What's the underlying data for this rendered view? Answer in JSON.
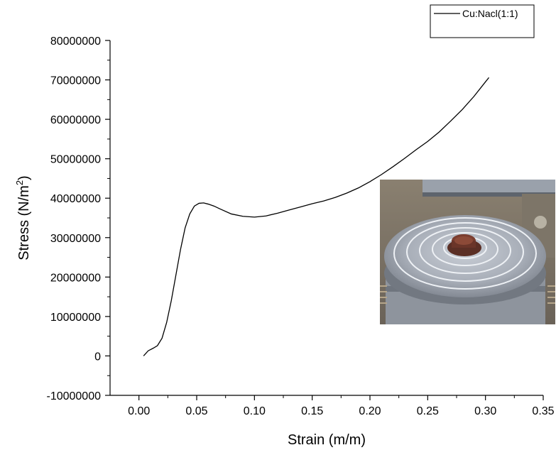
{
  "chart_data": {
    "type": "line",
    "xlabel": "Strain (m/m)",
    "ylabel_main": "Stress (N/m",
    "ylabel_sup": "2",
    "ylabel_close": ")",
    "xlim": [
      -0.025,
      0.35
    ],
    "ylim": [
      -10000000,
      80000000
    ],
    "x_ticks": [
      0.0,
      0.05,
      0.1,
      0.15,
      0.2,
      0.25,
      0.3,
      0.35
    ],
    "x_tick_labels": [
      "0.00",
      "0.05",
      "0.10",
      "0.15",
      "0.20",
      "0.25",
      "0.30",
      "0.35"
    ],
    "y_ticks": [
      -10000000,
      0,
      10000000,
      20000000,
      30000000,
      40000000,
      50000000,
      60000000,
      70000000,
      80000000
    ],
    "y_tick_labels": [
      "-10000000",
      "0",
      "10000000",
      "20000000",
      "30000000",
      "40000000",
      "50000000",
      "60000000",
      "70000000",
      "80000000"
    ],
    "grid": false,
    "legend_position": "top-right",
    "inset_photo": "photo of compressed Cu:NaCl sample on press platen",
    "series": [
      {
        "name": "Cu:Nacl(1:1)",
        "color": "#000000",
        "x": [
          0.004,
          0.008,
          0.012,
          0.016,
          0.02,
          0.024,
          0.028,
          0.032,
          0.036,
          0.04,
          0.044,
          0.048,
          0.052,
          0.056,
          0.06,
          0.065,
          0.07,
          0.08,
          0.09,
          0.1,
          0.11,
          0.12,
          0.13,
          0.14,
          0.15,
          0.16,
          0.17,
          0.18,
          0.19,
          0.2,
          0.21,
          0.22,
          0.23,
          0.24,
          0.25,
          0.26,
          0.27,
          0.28,
          0.29,
          0.3,
          0.303
        ],
        "y": [
          0,
          1300000,
          1900000,
          2600000,
          4500000,
          8500000,
          14000000,
          20500000,
          27000000,
          32500000,
          36000000,
          38000000,
          38700000,
          38800000,
          38500000,
          38000000,
          37300000,
          36000000,
          35400000,
          35200000,
          35500000,
          36200000,
          37000000,
          37800000,
          38600000,
          39300000,
          40200000,
          41300000,
          42600000,
          44200000,
          46000000,
          48000000,
          50100000,
          52300000,
          54400000,
          56800000,
          59600000,
          62500000,
          65800000,
          69500000,
          70600000
        ]
      }
    ]
  }
}
